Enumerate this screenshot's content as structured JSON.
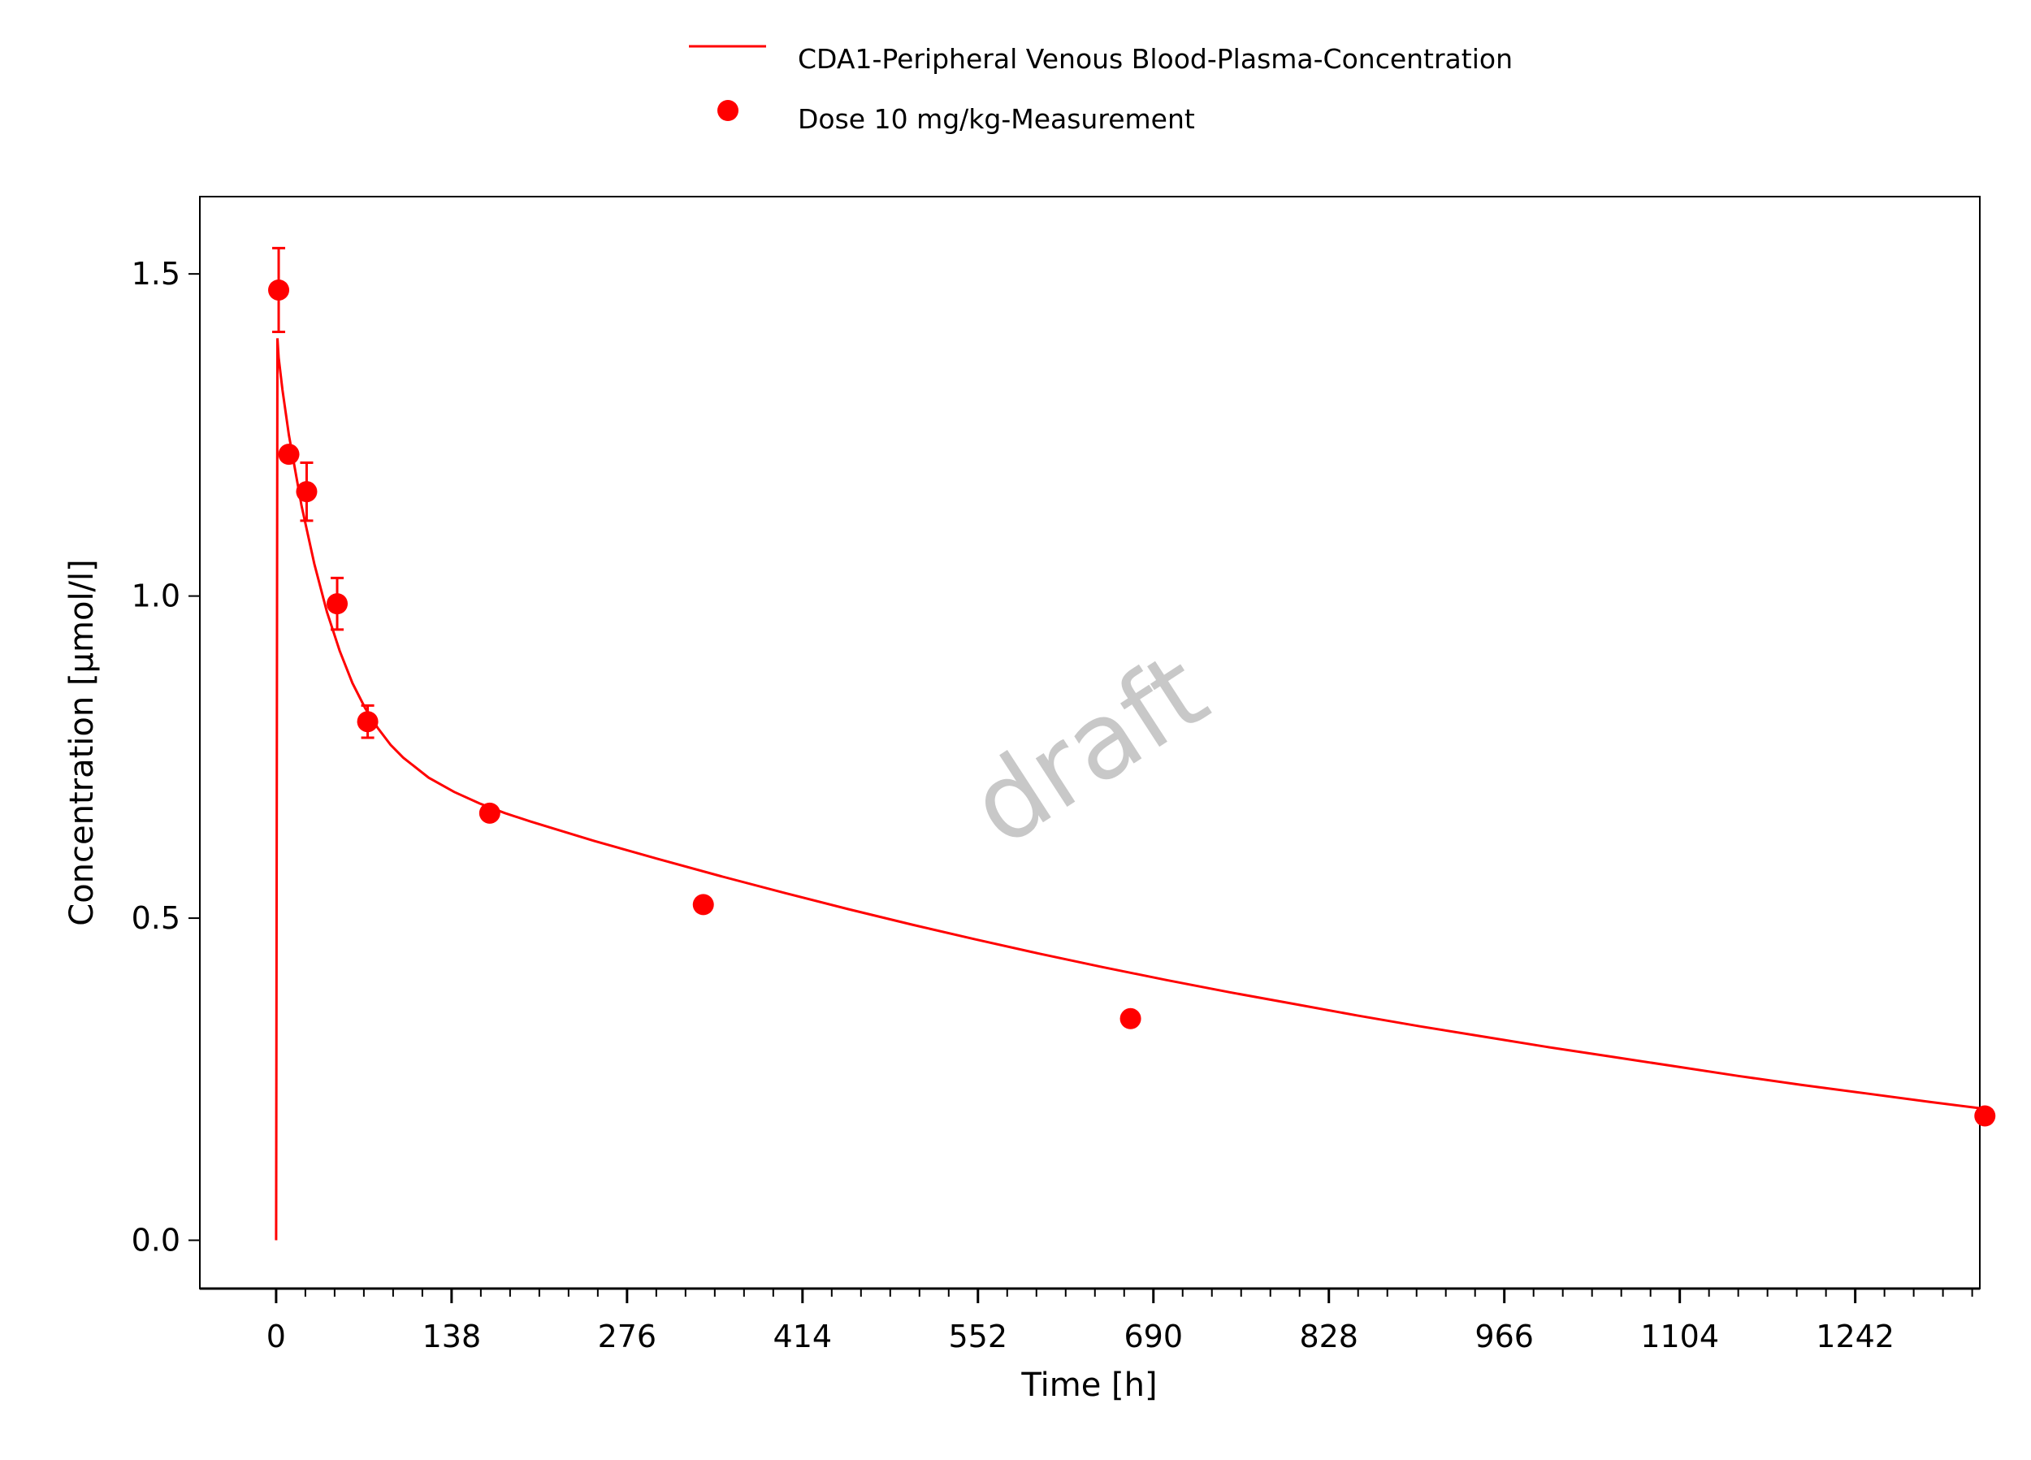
{
  "chart_data": {
    "type": "line",
    "title": "",
    "xlabel": "Time [h]",
    "ylabel": "Concentration [µmol/l]",
    "xlim": [
      -60,
      1340
    ],
    "ylim": [
      -0.075,
      1.62
    ],
    "x_ticks": [
      0,
      138,
      276,
      414,
      552,
      690,
      828,
      966,
      1104,
      1242
    ],
    "x_tick_labels": [
      "0",
      "138",
      "276",
      "414",
      "552",
      "690",
      "828",
      "966",
      "1104",
      "1242"
    ],
    "x_minor_step": 23,
    "y_ticks": [
      0.0,
      0.5,
      1.0,
      1.5
    ],
    "y_tick_labels": [
      "0.0",
      "0.5",
      "1.0",
      "1.5"
    ],
    "grid": false,
    "legend_position": "top-center",
    "watermark": "draft",
    "series": [
      {
        "name": "CDA1-Peripheral Venous Blood-Plasma-Concentration",
        "kind": "line",
        "color": "#ff0000",
        "x": [
          0,
          1,
          2,
          5,
          10,
          20,
          30,
          40,
          50,
          60,
          70,
          80,
          90,
          100,
          120,
          140,
          160,
          180,
          200,
          250,
          300,
          350,
          400,
          450,
          500,
          550,
          600,
          650,
          700,
          750,
          800,
          850,
          900,
          950,
          1000,
          1050,
          1100,
          1150,
          1200,
          1250,
          1300,
          1340
        ],
        "y": [
          0.0,
          1.4,
          1.37,
          1.32,
          1.25,
          1.14,
          1.05,
          0.975,
          0.915,
          0.865,
          0.826,
          0.795,
          0.769,
          0.749,
          0.718,
          0.696,
          0.678,
          0.663,
          0.65,
          0.62,
          0.592,
          0.565,
          0.539,
          0.514,
          0.49,
          0.467,
          0.445,
          0.424,
          0.404,
          0.385,
          0.367,
          0.349,
          0.332,
          0.316,
          0.3,
          0.285,
          0.27,
          0.255,
          0.241,
          0.228,
          0.215,
          0.205
        ]
      },
      {
        "name": "Dose 10 mg/kg-Measurement",
        "kind": "scatter",
        "color": "#ff0000",
        "x": [
          2,
          10,
          24,
          48,
          72,
          168,
          336,
          672,
          1344
        ],
        "y": [
          1.475,
          1.22,
          1.162,
          0.988,
          0.805,
          0.663,
          0.521,
          0.344,
          0.193
        ],
        "y_error": [
          0.065,
          null,
          0.045,
          0.04,
          0.025,
          null,
          null,
          null,
          null
        ]
      }
    ]
  }
}
